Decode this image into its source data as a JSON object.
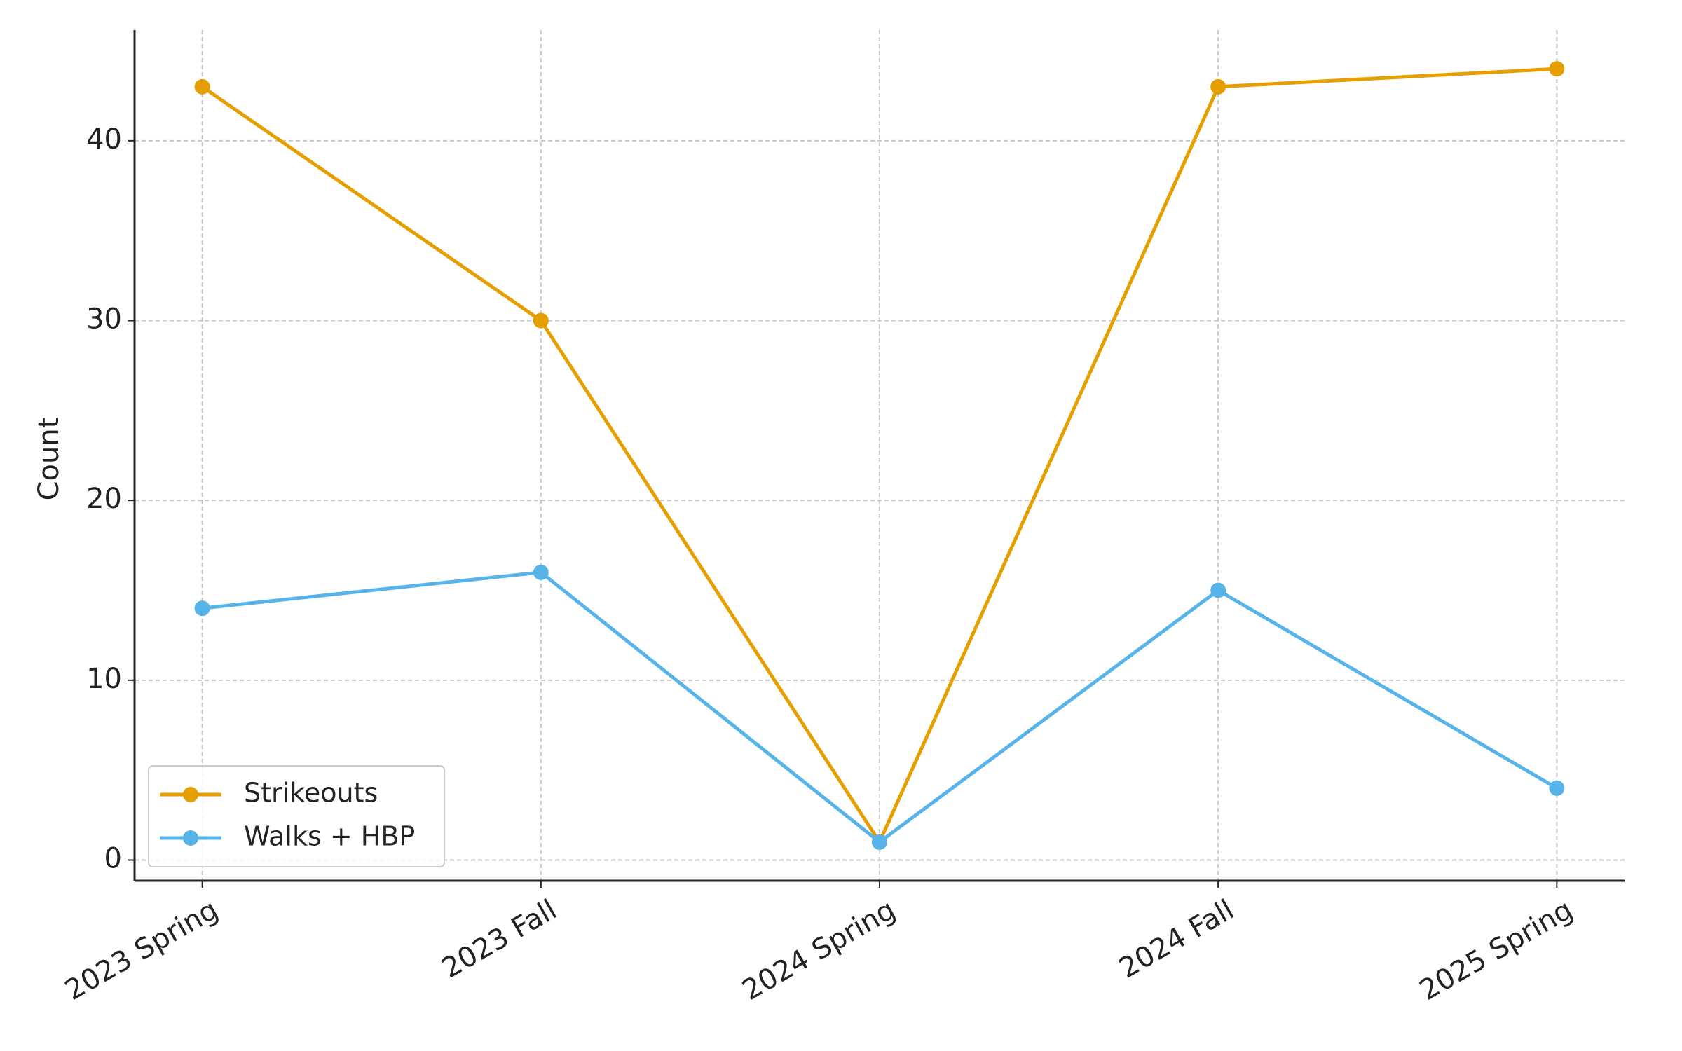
{
  "chart_data": {
    "type": "line",
    "y_label": "Count",
    "categories": [
      "2023 Spring",
      "2023 Fall",
      "2024 Spring",
      "2024 Fall",
      "2025 Spring"
    ],
    "series": [
      {
        "name": "Strikeouts",
        "color": "#E69F00",
        "values": [
          43,
          30,
          1,
          43,
          44
        ]
      },
      {
        "name": "Walks + HBP",
        "color": "#56B4E9",
        "values": [
          14,
          16,
          1,
          15,
          4
        ]
      }
    ],
    "ylim": [
      -1.15,
      46.15
    ],
    "yticks": [
      0,
      10,
      20,
      30,
      40
    ],
    "grid": true,
    "legend": "lower left"
  }
}
